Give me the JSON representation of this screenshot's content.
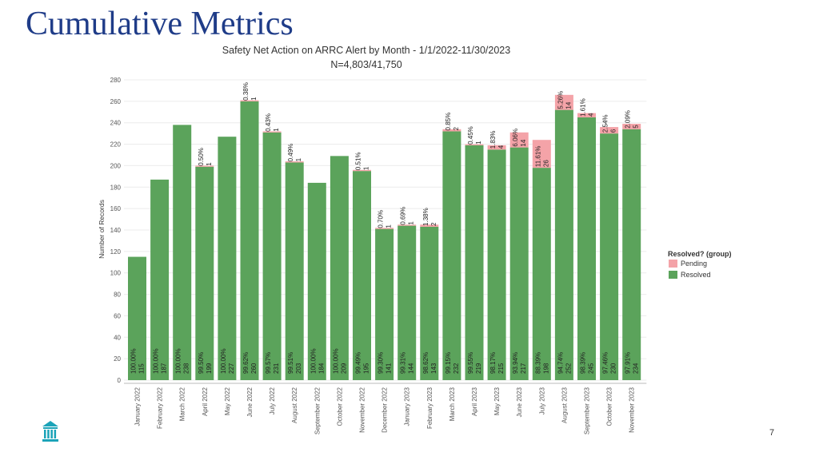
{
  "slide": {
    "title": "Cumulative Metrics",
    "page_number": "7",
    "logo_icon": "institution-columns-icon"
  },
  "colors": {
    "title": "#1f3c88",
    "resolved": "#5ba35b",
    "pending": "#f4a3a8",
    "logo": "#1ba3b8"
  },
  "chart_data": {
    "type": "bar",
    "stacked": true,
    "title": "Safety Net Action on ARRC Alert by Month -  1/1/2022-11/30/2023",
    "subtitle": "N=4,803/41,750",
    "xlabel": "",
    "ylabel": "Number of Records",
    "ylim": [
      0,
      280
    ],
    "yticks": [
      0,
      20,
      40,
      60,
      80,
      100,
      120,
      140,
      160,
      180,
      200,
      220,
      240,
      260,
      280
    ],
    "grid": true,
    "legend": {
      "title": "Resolved? (group)",
      "placement": "right",
      "entries": [
        "Pending",
        "Resolved"
      ]
    },
    "categories": [
      "January 2022",
      "February 2022",
      "March 2022",
      "April 2022",
      "May 2022",
      "June 2022",
      "July 2022",
      "August 2022",
      "September 2022",
      "October 2022",
      "November 2022",
      "December 2022",
      "January 2023",
      "February 2023",
      "March 2023",
      "April 2023",
      "May 2023",
      "June 2023",
      "July 2023",
      "August 2023",
      "September 2023",
      "October 2023",
      "November 2023"
    ],
    "series": [
      {
        "name": "Resolved",
        "values": [
          115,
          187,
          238,
          199,
          227,
          260,
          231,
          203,
          184,
          209,
          195,
          141,
          144,
          143,
          232,
          219,
          215,
          217,
          198,
          252,
          245,
          230,
          234
        ],
        "pct_labels": [
          "100.00%",
          "100.00%",
          "100.00%",
          "99.50%",
          "100.00%",
          "99.62%",
          "99.57%",
          "99.51%",
          "100.00%",
          "100.00%",
          "99.49%",
          "99.30%",
          "99.31%",
          "98.62%",
          "99.15%",
          "99.55%",
          "98.17%",
          "93.94%",
          "88.39%",
          "94.74%",
          "98.39%",
          "97.46%",
          "97.91%"
        ]
      },
      {
        "name": "Pending",
        "values": [
          0,
          0,
          0,
          1,
          0,
          1,
          1,
          1,
          0,
          0,
          1,
          1,
          1,
          2,
          2,
          1,
          4,
          14,
          26,
          14,
          4,
          6,
          5
        ],
        "pct_labels": [
          "",
          "",
          "",
          "0.50%",
          "",
          "0.38%",
          "0.43%",
          "0.49%",
          "",
          "",
          "0.51%",
          "0.70%",
          "0.69%",
          "1.38%",
          "0.85%",
          "0.45%",
          "1.83%",
          "6.06%",
          "11.61%",
          "5.26%",
          "1.61%",
          "2.54%",
          "2.09%"
        ]
      }
    ]
  }
}
